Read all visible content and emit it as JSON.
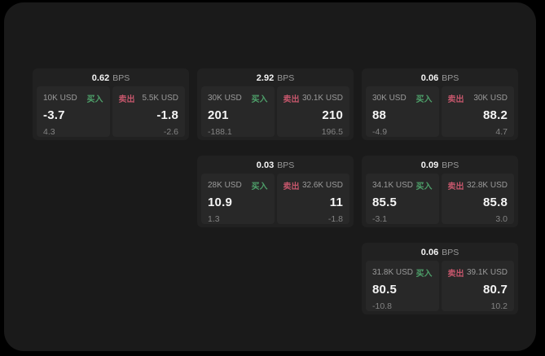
{
  "colors": {
    "canvas_bg": "#1a1a1a",
    "card_bg": "#212121",
    "panel_bg": "#282828",
    "buy_green": "#4ea06a",
    "sell_red": "#c4566b",
    "text_primary": "#f5f5f5",
    "text_muted": "#9a9a9a",
    "text_dim": "#838383"
  },
  "labels": {
    "bps_unit": "BPS",
    "buy": "买入",
    "sell": "卖出"
  },
  "cards": [
    {
      "bps": "0.62",
      "buy": {
        "size": "10K USD",
        "price": "-3.7",
        "change": "4.3"
      },
      "sell": {
        "size": "5.5K USD",
        "price": "-1.8",
        "change": "-2.6"
      }
    },
    {
      "bps": "2.92",
      "buy": {
        "size": "30K USD",
        "price": "201",
        "change": "-188.1"
      },
      "sell": {
        "size": "30.1K USD",
        "price": "210",
        "change": "196.5"
      }
    },
    {
      "bps": "0.06",
      "buy": {
        "size": "30K USD",
        "price": "88",
        "change": "-4.9"
      },
      "sell": {
        "size": "30K USD",
        "price": "88.2",
        "change": "4.7"
      }
    },
    {
      "bps": "0.03",
      "buy": {
        "size": "28K USD",
        "price": "10.9",
        "change": "1.3"
      },
      "sell": {
        "size": "32.6K USD",
        "price": "11",
        "change": "-1.8"
      }
    },
    {
      "bps": "0.09",
      "buy": {
        "size": "34.1K USD",
        "price": "85.5",
        "change": "-3.1"
      },
      "sell": {
        "size": "32.8K USD",
        "price": "85.8",
        "change": "3.0"
      }
    },
    {
      "bps": "0.06",
      "buy": {
        "size": "31.8K USD",
        "price": "80.5",
        "change": "-10.8"
      },
      "sell": {
        "size": "39.1K USD",
        "price": "80.7",
        "change": "10.2"
      }
    }
  ]
}
